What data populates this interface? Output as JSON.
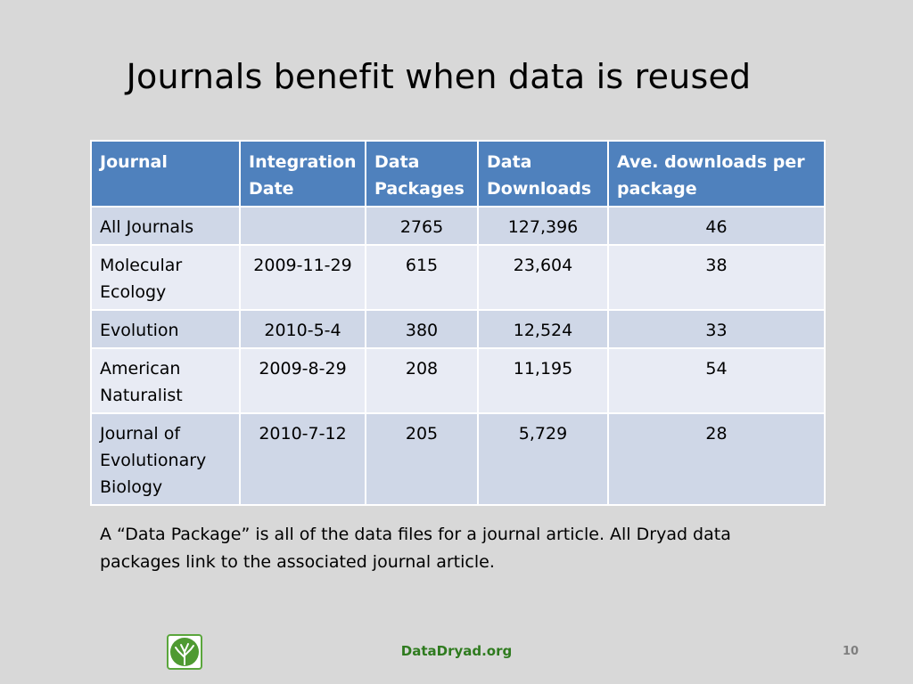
{
  "slide": {
    "title": "Journals benefit when data is reused",
    "table": {
      "headers": [
        "Journal",
        "Integration Date",
        "Data Packages",
        "Data Downloads",
        "Ave. downloads per package"
      ],
      "rows": [
        [
          "All Journals",
          "",
          "2765",
          "127,396",
          "46"
        ],
        [
          "Molecular Ecology",
          "2009-11-29",
          "615",
          "23,604",
          "38"
        ],
        [
          "Evolution",
          "2010-5-4",
          "380",
          "12,524",
          "33"
        ],
        [
          "American Naturalist",
          "2009-8-29",
          "208",
          "11,195",
          "54"
        ],
        [
          "Journal of Evolutionary Biology",
          "2010-7-12",
          "205",
          "5,729",
          "28"
        ]
      ]
    },
    "note": "A “Data Package” is all of the data files for a journal article.   All Dryad data packages link to the associated journal article.",
    "footer": {
      "site": "DataDryad.org",
      "page_number": "10",
      "logo_icon": "dryad-tree-icon"
    },
    "colors": {
      "header_blue": "#4f81bd",
      "row_dark": "#cfd7e7",
      "row_light": "#e8ebf4",
      "footer_green": "#2f7b1f"
    }
  }
}
